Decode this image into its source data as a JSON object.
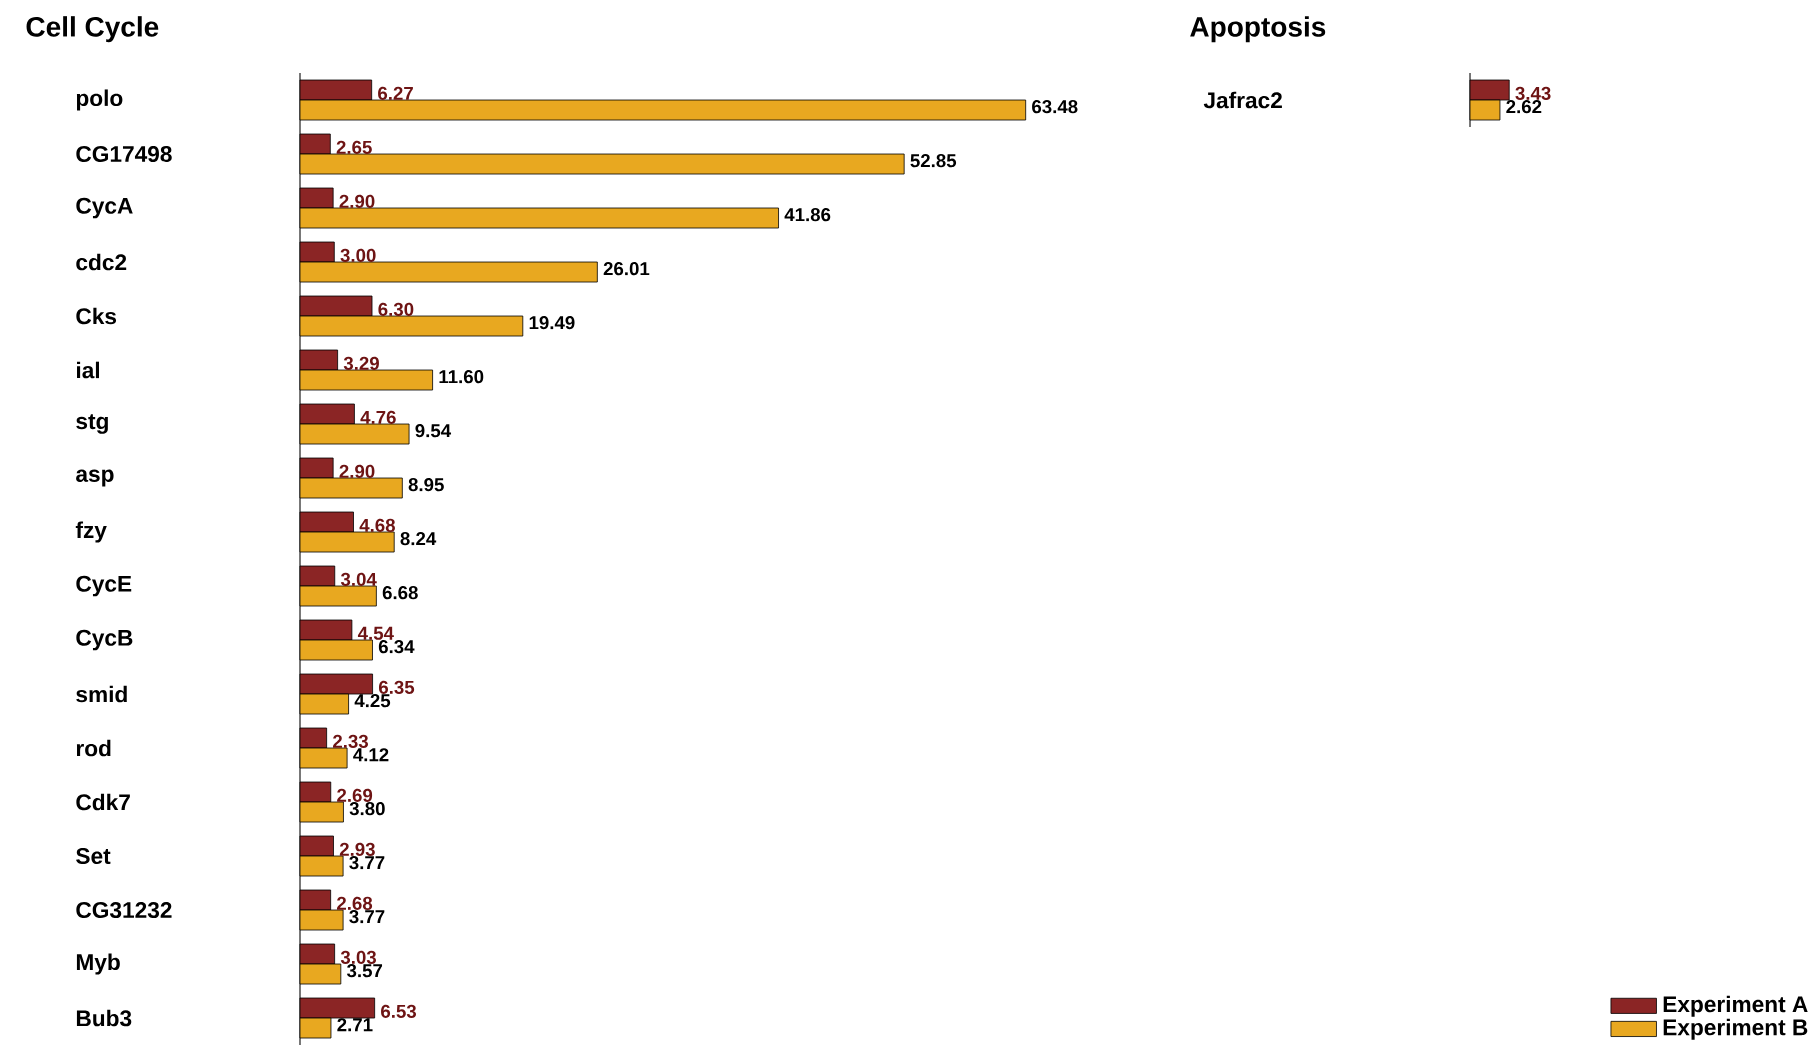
{
  "chart_data": [
    {
      "type": "bar",
      "orientation": "horizontal",
      "title": "Cell Cycle",
      "categories": [
        "polo",
        "CG17498",
        "CycA",
        "cdc2",
        "Cks",
        "ial",
        "stg",
        "asp",
        "fzy",
        "CycE",
        "CycB",
        "smid",
        "rod",
        "Cdk7",
        "Set",
        "CG31232",
        "Myb",
        "Bub3"
      ],
      "series": [
        {
          "name": "Experiment A",
          "color": "#8b2525",
          "values": [
            6.27,
            2.65,
            2.9,
            3.0,
            6.3,
            3.29,
            4.76,
            2.9,
            4.68,
            3.04,
            4.54,
            6.35,
            2.33,
            2.69,
            2.93,
            2.68,
            3.03,
            6.53
          ],
          "value_labels": [
            "6.27",
            "2.65",
            "2.90",
            "3.00",
            "6.30",
            "3.29",
            "4.76",
            "2.90",
            "4.68",
            "3.04",
            "4.54",
            "6.35",
            "2.33",
            "2.69",
            "2.93",
            "2.68",
            "3.03",
            "6.53"
          ]
        },
        {
          "name": "Experiment B",
          "color": "#e8a820",
          "values": [
            63.48,
            52.85,
            41.86,
            26.01,
            19.49,
            11.6,
            9.54,
            8.95,
            8.24,
            6.68,
            6.34,
            4.25,
            4.12,
            3.8,
            3.77,
            3.77,
            3.57,
            2.71
          ],
          "value_labels": [
            "63.48",
            "52.85",
            "41.86",
            "26.01",
            "19.49",
            "11.60",
            "9.54",
            "8.95",
            "8.24",
            "6.68",
            "6.34",
            "4.25",
            "4.12",
            "3.80",
            "3.77",
            "3.77",
            "3.57",
            "2.71"
          ]
        }
      ],
      "legend": "bottom right"
    },
    {
      "type": "bar",
      "orientation": "horizontal",
      "title": "Apoptosis",
      "categories": [
        "Jafrac2"
      ],
      "series": [
        {
          "color": "#8b2525",
          "values": [
            3.43
          ],
          "value_labels": [
            "3.43"
          ]
        },
        {
          "color": "#e8a820",
          "values": [
            2.62
          ],
          "value_labels": [
            "2.62"
          ]
        }
      ]
    }
  ]
}
